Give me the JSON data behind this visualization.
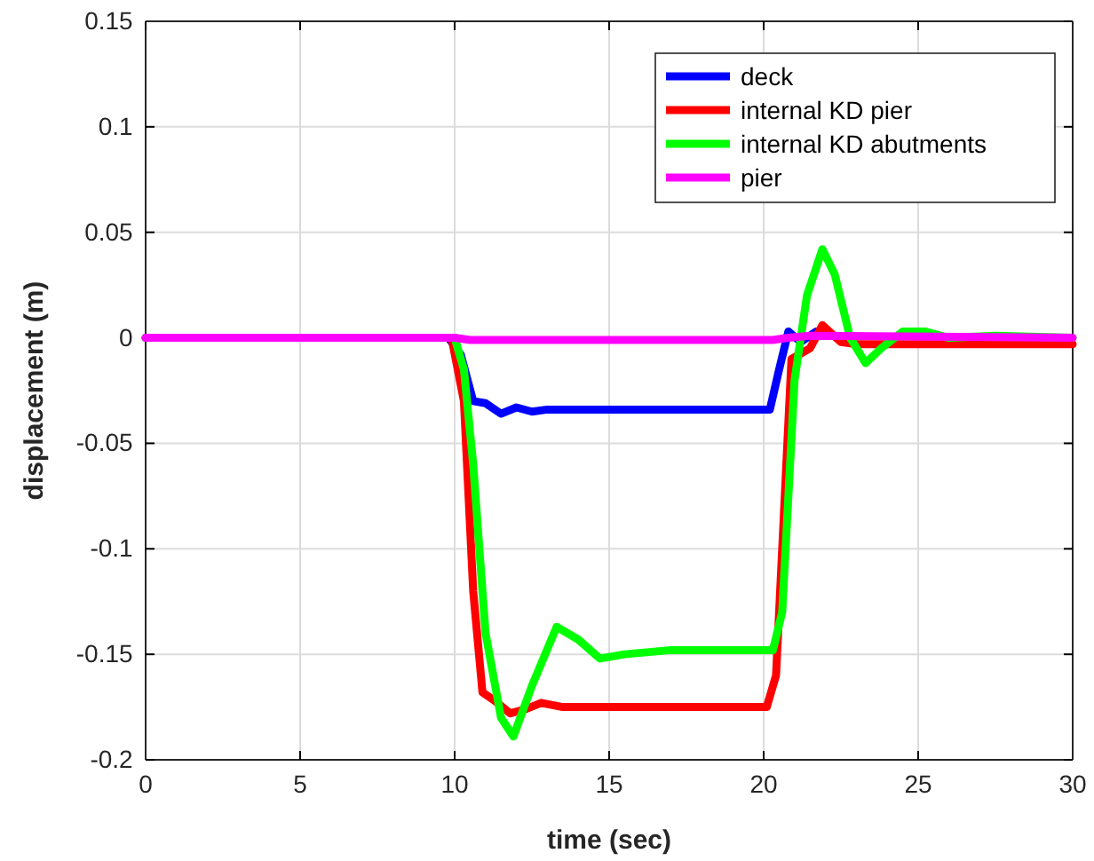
{
  "chart_data": {
    "type": "line",
    "xlabel": "time (sec)",
    "ylabel": "displacement (m)",
    "xlim": [
      0,
      30
    ],
    "ylim": [
      -0.2,
      0.15
    ],
    "xticks": [
      0,
      5,
      10,
      15,
      20,
      25,
      30
    ],
    "yticks": [
      -0.2,
      -0.15,
      -0.1,
      -0.05,
      0,
      0.05,
      0.1,
      0.15
    ],
    "grid": true,
    "legend": "top right",
    "series": [
      {
        "name": "deck",
        "color": "#0000ff",
        "x": [
          0,
          9.8,
          10.2,
          10.6,
          11,
          11.5,
          12,
          12.5,
          13,
          20.2,
          20.5,
          20.8,
          21.2,
          21.7,
          22.5
        ],
        "values": [
          0,
          0,
          -0.008,
          -0.03,
          -0.031,
          -0.036,
          -0.033,
          -0.035,
          -0.034,
          -0.034,
          -0.015,
          0.003,
          -0.002,
          0.003,
          0
        ]
      },
      {
        "name": "internal KD pier",
        "color": "#ff0000",
        "x": [
          0,
          9.9,
          10.3,
          10.6,
          10.9,
          11.3,
          11.8,
          12.3,
          12.8,
          13.5,
          20.1,
          20.4,
          20.6,
          20.9,
          21.5,
          21.9,
          22.5,
          23,
          30
        ],
        "values": [
          0,
          0,
          -0.03,
          -0.12,
          -0.168,
          -0.172,
          -0.178,
          -0.176,
          -0.173,
          -0.175,
          -0.175,
          -0.16,
          -0.1,
          -0.01,
          -0.005,
          0.006,
          -0.002,
          -0.003,
          -0.003
        ]
      },
      {
        "name": "internal KD abutments",
        "color": "#00ff00",
        "x": [
          0,
          10,
          10.3,
          10.6,
          11,
          11.5,
          11.9,
          12.5,
          13.3,
          14,
          14.7,
          15.5,
          17,
          20.3,
          20.6,
          21,
          21.4,
          21.9,
          22.3,
          22.8,
          23.3,
          23.8,
          24.5,
          25.2,
          26,
          27.5,
          30
        ],
        "values": [
          0,
          0,
          -0.015,
          -0.06,
          -0.14,
          -0.18,
          -0.189,
          -0.165,
          -0.137,
          -0.143,
          -0.152,
          -0.15,
          -0.148,
          -0.148,
          -0.13,
          -0.02,
          0.02,
          0.042,
          0.03,
          0,
          -0.012,
          -0.005,
          0.003,
          0.003,
          0,
          0.001,
          0
        ]
      },
      {
        "name": "pier",
        "color": "#ff00ff",
        "x": [
          0,
          10,
          10.5,
          20.3,
          20.8,
          21.5,
          30
        ],
        "values": [
          0,
          0,
          -0.001,
          -0.001,
          0,
          0.001,
          0
        ]
      }
    ]
  }
}
